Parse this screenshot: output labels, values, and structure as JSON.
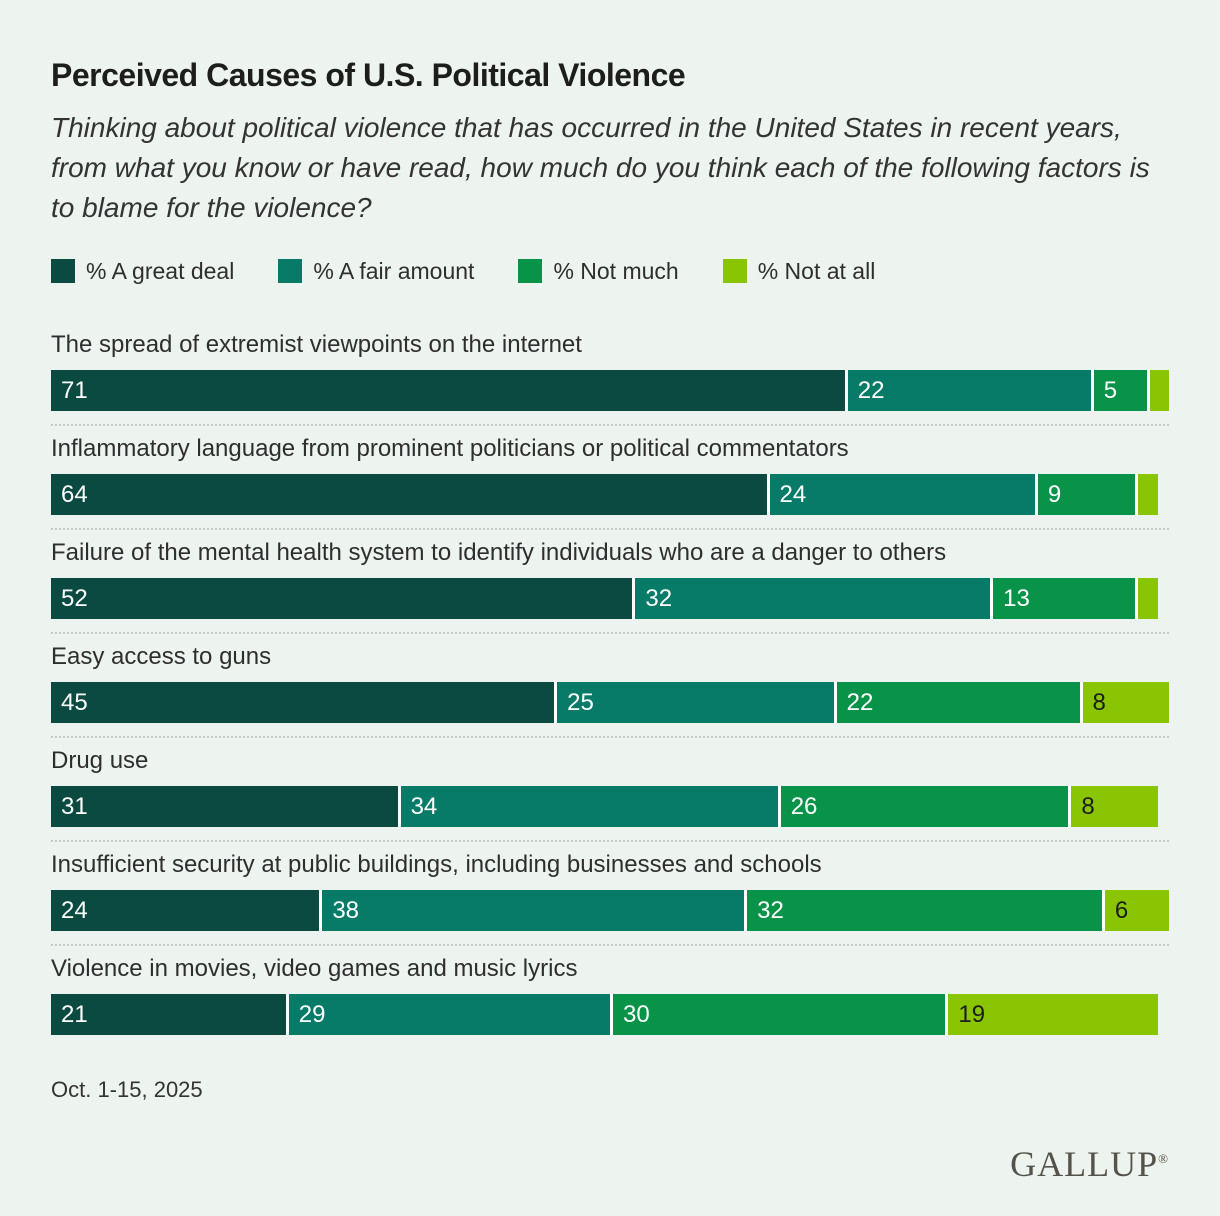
{
  "header": {
    "title": "Perceived Causes of U.S. Political Violence",
    "subtitle": "Thinking about political violence that has occurred in the United States in recent years, from what you know or have read, how much do you think each of the following factors is to blame for the violence?"
  },
  "legend": [
    {
      "key": "a-great-deal",
      "label": "% A great deal",
      "color": "#0a4a41",
      "label_text_color": "#ffffff"
    },
    {
      "key": "a-fair-amount",
      "label": "% A fair amount",
      "color": "#077b67",
      "label_text_color": "#ffffff"
    },
    {
      "key": "not-much",
      "label": "% Not much",
      "color": "#089349",
      "label_text_color": "#ffffff"
    },
    {
      "key": "not-at-all",
      "label": "% Not at all",
      "color": "#89c502",
      "label_text_color": "#1c1c1c"
    }
  ],
  "chart_data": {
    "type": "bar",
    "orientation": "horizontal",
    "stacked": true,
    "unit": "percent",
    "xlim": [
      0,
      100
    ],
    "grid": false,
    "legend_position": "top",
    "value_labels": "inside-left",
    "series_names": [
      "% A great deal",
      "% A fair amount",
      "% Not much",
      "% Not at all"
    ],
    "categories": [
      "The spread of extremist viewpoints on the internet",
      "Inflammatory language from prominent politicians or political commentators",
      "Failure of the mental health system to identify individuals who are a danger to others",
      "Easy access to guns",
      "Drug use",
      "Insufficient security at public buildings, including businesses and schools",
      "Violence in movies, video games and music lyrics"
    ],
    "rows": [
      {
        "category": "The spread of extremist viewpoints on the internet",
        "values": [
          71,
          22,
          5,
          2
        ],
        "labels": [
          "71",
          "22",
          "5",
          ""
        ]
      },
      {
        "category": "Inflammatory language from prominent politicians or political commentators",
        "values": [
          64,
          24,
          9,
          2
        ],
        "labels": [
          "64",
          "24",
          "9",
          ""
        ]
      },
      {
        "category": "Failure of the mental health system to identify individuals who are a danger to others",
        "values": [
          52,
          32,
          13,
          2
        ],
        "labels": [
          "52",
          "32",
          "13",
          ""
        ]
      },
      {
        "category": "Easy access to guns",
        "values": [
          45,
          25,
          22,
          8
        ],
        "labels": [
          "45",
          "25",
          "22",
          "8"
        ]
      },
      {
        "category": "Drug use",
        "values": [
          31,
          34,
          26,
          8
        ],
        "labels": [
          "31",
          "34",
          "26",
          "8"
        ]
      },
      {
        "category": "Insufficient security at public buildings, including businesses and schools",
        "values": [
          24,
          38,
          32,
          6
        ],
        "labels": [
          "24",
          "38",
          "32",
          "6"
        ]
      },
      {
        "category": "Violence in movies, video games and music lyrics",
        "values": [
          21,
          29,
          30,
          19
        ],
        "labels": [
          "21",
          "29",
          "30",
          "19"
        ]
      }
    ]
  },
  "footer": {
    "date": "Oct. 1-15, 2025",
    "brand": "GALLUP",
    "registered_mark": "®"
  }
}
